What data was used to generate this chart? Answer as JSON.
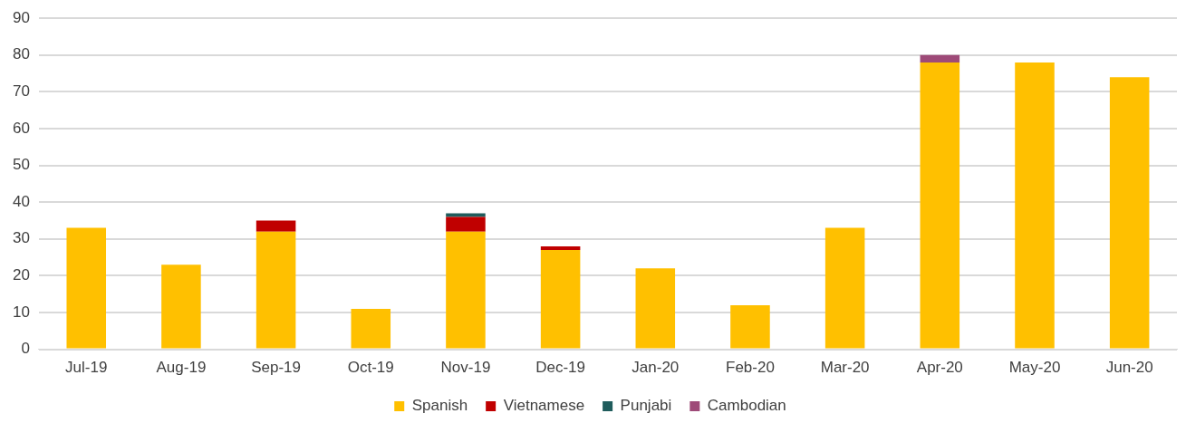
{
  "chart_data": {
    "type": "bar",
    "stacked": true,
    "categories": [
      "Jul-19",
      "Aug-19",
      "Sep-19",
      "Oct-19",
      "Nov-19",
      "Dec-19",
      "Jan-20",
      "Feb-20",
      "Mar-20",
      "Apr-20",
      "May-20",
      "Jun-20"
    ],
    "series": [
      {
        "name": "Spanish",
        "color": "#ffc000",
        "values": [
          33,
          23,
          32,
          11,
          32,
          27,
          22,
          12,
          33,
          78,
          78,
          74
        ]
      },
      {
        "name": "Vietnamese",
        "color": "#c00000",
        "values": [
          0,
          0,
          3,
          0,
          4,
          1,
          0,
          0,
          0,
          0,
          0,
          0
        ]
      },
      {
        "name": "Punjabi",
        "color": "#1f5c5c",
        "values": [
          0,
          0,
          0,
          0,
          1,
          0,
          0,
          0,
          0,
          0,
          0,
          0
        ]
      },
      {
        "name": "Cambodian",
        "color": "#9e4a78",
        "values": [
          0,
          0,
          0,
          0,
          0,
          0,
          0,
          0,
          0,
          2,
          0,
          0
        ]
      }
    ],
    "ylim": [
      0,
      90
    ],
    "yticks": [
      0,
      10,
      20,
      30,
      40,
      50,
      60,
      70,
      80,
      90
    ],
    "grid": "y",
    "legend": "bottom"
  }
}
